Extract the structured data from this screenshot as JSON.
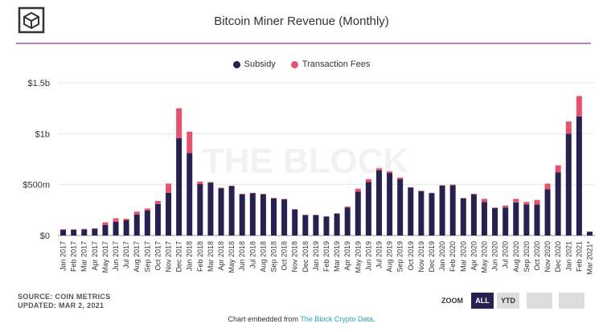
{
  "header": {
    "title": "Bitcoin Miner Revenue (Monthly)",
    "logo": "the-block-cube-logo"
  },
  "watermark": "THE BLOCK",
  "legend": {
    "subsidy": "Subsidy",
    "fees": "Transaction Fees"
  },
  "footer": {
    "source": "SOURCE: COIN METRICS",
    "updated": "UPDATED: MAR 2, 2021",
    "embed_prefix": "Chart embedded from ",
    "embed_link": "The Block Crypto Data",
    "embed_suffix": "."
  },
  "zoom": {
    "label": "ZOOM",
    "buttons": [
      "ALL",
      "YTD",
      "",
      ""
    ],
    "active": "ALL"
  },
  "colors": {
    "subsidy": "#27214f",
    "fees": "#e5526f",
    "rule": "#b07cc6",
    "link": "#2aa6b5"
  },
  "chart_data": {
    "type": "bar",
    "stacked": true,
    "title": "Bitcoin Miner Revenue (Monthly)",
    "ylim": [
      0,
      1500
    ],
    "yunit": "USD millions",
    "yticks": [
      {
        "v": 0,
        "label": "$0"
      },
      {
        "v": 500,
        "label": "$500m"
      },
      {
        "v": 1000,
        "label": "$1b"
      },
      {
        "v": 1500,
        "label": "$1.5b"
      }
    ],
    "grid": true,
    "legend_position": "top",
    "categories": [
      "Jan 2017",
      "Feb 2017",
      "Mar 2017",
      "Apr 2017",
      "May 2017",
      "Jun 2017",
      "Jul 2017",
      "Aug 2017",
      "Sep 2017",
      "Oct 2017",
      "Nov 2017",
      "Dec 2017",
      "Jan 2018",
      "Feb 2018",
      "Mar 2018",
      "Apr 2018",
      "May 2018",
      "Jun 2018",
      "Jul 2018",
      "Aug 2018",
      "Sep 2018",
      "Oct 2018",
      "Nov 2018",
      "Dec 2018",
      "Jan 2019",
      "Feb 2019",
      "Mar 2019",
      "Apr 2019",
      "May 2019",
      "Jun 2019",
      "Jul 2019",
      "Aug 2019",
      "Sep 2019",
      "Oct 2019",
      "Nov 2019",
      "Dec 2019",
      "Jan 2020",
      "Feb 2020",
      "Mar 2020",
      "Apr 2020",
      "May 2020",
      "Jun 2020",
      "Jul 2020",
      "Aug 2020",
      "Sep 2020",
      "Oct 2020",
      "Nov 2020",
      "Dec 2020",
      "Jan 2021",
      "Feb 2021",
      "Mar 2021*"
    ],
    "series": [
      {
        "name": "Subsidy",
        "values": [
          57,
          57,
          60,
          66,
          105,
          135,
          150,
          205,
          245,
          310,
          420,
          955,
          810,
          505,
          520,
          465,
          485,
          405,
          415,
          405,
          365,
          355,
          255,
          200,
          200,
          185,
          215,
          275,
          430,
          525,
          640,
          615,
          555,
          470,
          435,
          415,
          490,
          495,
          365,
          405,
          330,
          270,
          275,
          325,
          305,
          305,
          455,
          620,
          1000,
          1170,
          38
        ]
      },
      {
        "name": "Transaction Fees",
        "values": [
          5,
          5,
          5,
          6,
          25,
          35,
          15,
          30,
          20,
          30,
          90,
          295,
          210,
          25,
          5,
          5,
          5,
          5,
          5,
          5,
          5,
          5,
          5,
          5,
          5,
          5,
          5,
          10,
          30,
          30,
          20,
          15,
          15,
          5,
          5,
          5,
          5,
          5,
          5,
          5,
          30,
          5,
          20,
          35,
          25,
          45,
          55,
          70,
          120,
          200,
          2
        ]
      }
    ]
  }
}
